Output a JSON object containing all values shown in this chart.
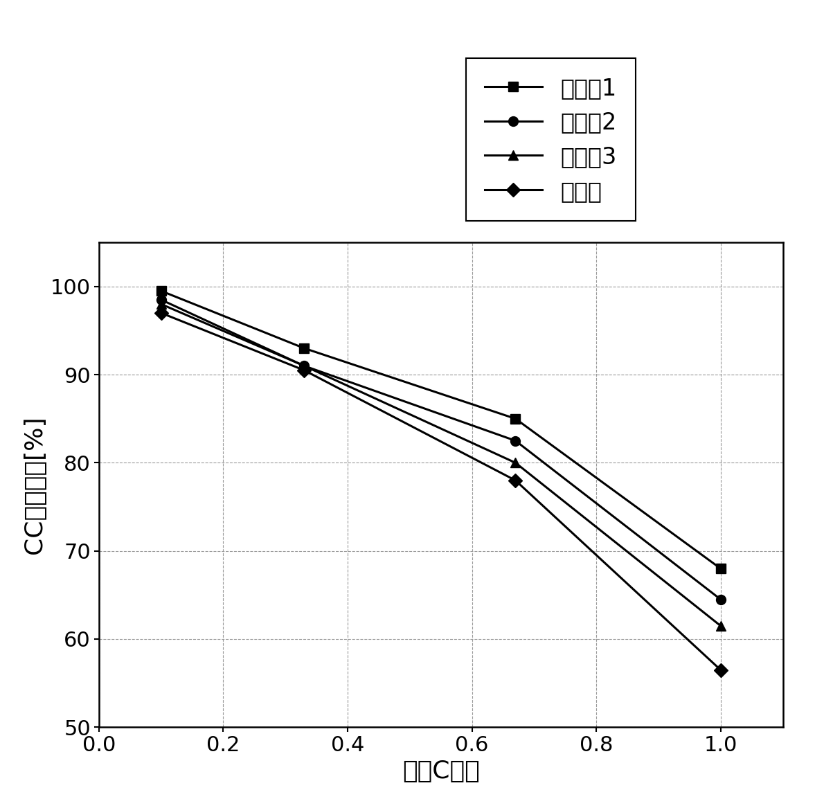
{
  "series": [
    {
      "label": "实施例1",
      "x": [
        0.1,
        0.33,
        0.67,
        1.0
      ],
      "y": [
        99.5,
        93.0,
        85.0,
        68.0
      ],
      "marker": "s",
      "color": "#000000",
      "linewidth": 2.2,
      "markersize": 10
    },
    {
      "label": "实施例2",
      "x": [
        0.1,
        0.33,
        0.67,
        1.0
      ],
      "y": [
        98.5,
        91.0,
        82.5,
        64.5
      ],
      "marker": "o",
      "color": "#000000",
      "linewidth": 2.2,
      "markersize": 10
    },
    {
      "label": "实施例3",
      "x": [
        0.1,
        0.33,
        0.67,
        1.0
      ],
      "y": [
        98.0,
        91.0,
        80.0,
        61.5
      ],
      "marker": "^",
      "color": "#000000",
      "linewidth": 2.2,
      "markersize": 10
    },
    {
      "label": "比较例",
      "x": [
        0.1,
        0.33,
        0.67,
        1.0
      ],
      "y": [
        97.0,
        90.5,
        78.0,
        56.5
      ],
      "marker": "D",
      "color": "#000000",
      "linewidth": 2.2,
      "markersize": 10
    }
  ],
  "xlabel": "放电C倍率",
  "ylabel": "CC充电容量[%]",
  "xlim": [
    0.0,
    1.1
  ],
  "ylim": [
    50,
    105
  ],
  "xticks": [
    0.0,
    0.2,
    0.4,
    0.6,
    0.8,
    1.0
  ],
  "yticks": [
    50,
    60,
    70,
    80,
    90,
    100
  ],
  "xlabel_fontsize": 26,
  "ylabel_fontsize": 26,
  "tick_fontsize": 22,
  "legend_fontsize": 24,
  "grid_color": "#999999",
  "grid_linestyle": "--",
  "background_color": "#ffffff"
}
